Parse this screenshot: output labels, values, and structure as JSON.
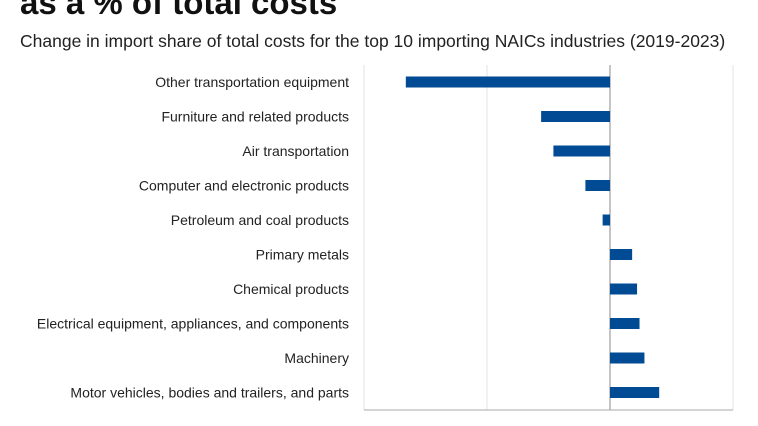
{
  "title": "as a % of total costs",
  "subtitle": "Change in import share of total costs for the top 10 importing NAICs industries (2019-2023)",
  "chart_data": {
    "type": "bar",
    "orientation": "horizontal",
    "title": "as a % of total costs",
    "subtitle": "Change in import share of total costs for the top 10 importing NAICs industries (2019-2023)",
    "categories": [
      "Other transportation equipment",
      "Furniture and related products",
      "Air transportation",
      "Computer and electronic products",
      "Petroleum and coal products",
      "Primary metals",
      "Chemical products",
      "Electrical equipment, appliances, and components",
      "Machinery",
      "Motor vehicles, bodies and trailers, and parts"
    ],
    "values": [
      -8.3,
      -2.8,
      -2.3,
      -1.0,
      -0.3,
      0.9,
      1.1,
      1.2,
      1.4,
      2.0
    ],
    "xlim": [
      -10,
      5
    ],
    "xticks": [
      "-10%",
      "-5%",
      "0%",
      "5%"
    ],
    "grid": true,
    "color": "#004b93"
  }
}
